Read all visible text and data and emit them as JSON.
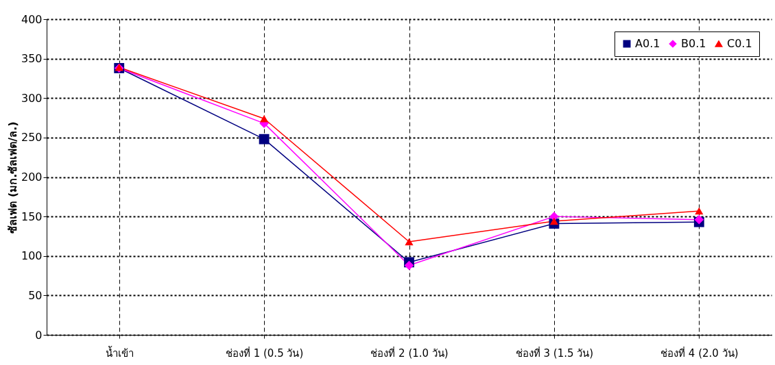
{
  "chart_data": {
    "type": "line",
    "ylabel": "ซัลเฟต (มก.ซัลเฟต/ล.)",
    "categories": [
      "น้ำเข้า",
      "ช่องที่ 1 (0.5 วัน)",
      "ช่องที่ 2 (1.0 วัน)",
      "ช่องที่ 3 (1.5 วัน)",
      "ช่องที่ 4 (2.0 วัน)"
    ],
    "series": [
      {
        "name": "A0.1",
        "color": "#000080",
        "marker": "square",
        "values": [
          338,
          248,
          92,
          141,
          143
        ]
      },
      {
        "name": "B0.1",
        "color": "#ff00ff",
        "marker": "diamond",
        "values": [
          338,
          268,
          88,
          150,
          146
        ]
      },
      {
        "name": "C0.1",
        "color": "#ff0000",
        "marker": "triangle",
        "values": [
          339,
          274,
          118,
          144,
          157
        ]
      }
    ],
    "ylim": [
      0,
      400
    ],
    "yticks": [
      0,
      50,
      100,
      150,
      200,
      250,
      300,
      350,
      400
    ],
    "grid": true,
    "legend": "top right",
    "line_style": "solid"
  }
}
